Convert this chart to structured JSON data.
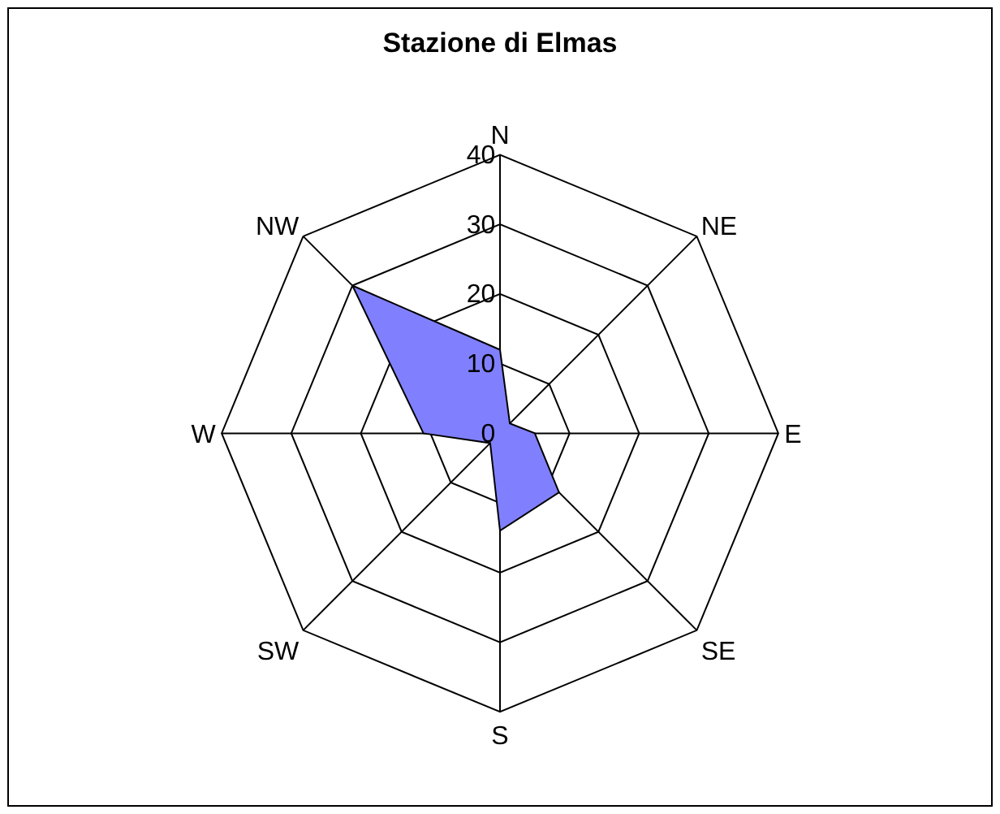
{
  "chart_data": {
    "type": "radar",
    "title": "Stazione di Elmas",
    "categories": [
      "N",
      "NE",
      "E",
      "SE",
      "S",
      "SW",
      "W",
      "NW"
    ],
    "series": [
      {
        "color": "#8080ff",
        "values": [
          12,
          2,
          5,
          12,
          14,
          2,
          11,
          30
        ]
      }
    ],
    "ylim": [
      0,
      40
    ],
    "yticks": [
      0,
      10,
      20,
      30,
      40
    ],
    "grid": true
  }
}
